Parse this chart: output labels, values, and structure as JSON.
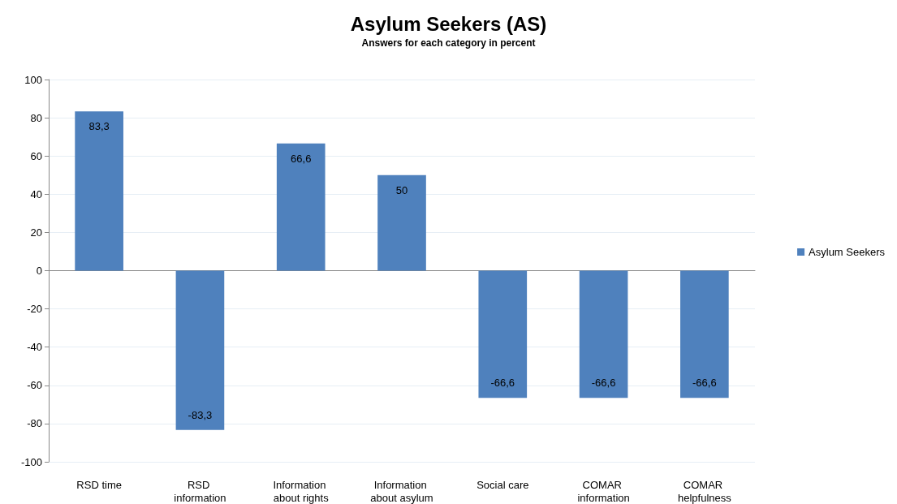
{
  "chart_data": {
    "type": "bar",
    "title": "Asylum Seekers (AS)",
    "subtitle": "Answers for each category in percent",
    "categories": [
      "RSD time",
      "RSD information",
      "Information about rights",
      "Information about asylum",
      "Social care",
      "COMAR information",
      "COMAR helpfulness"
    ],
    "series": [
      {
        "name": "Asylum Seekers",
        "color": "#4f81bd",
        "values": [
          83.3,
          -83.3,
          66.6,
          50,
          -66.6,
          -66.6,
          -66.6
        ],
        "value_labels": [
          "83,3",
          "-83,3",
          "66,6",
          "50",
          "-66,6",
          "-66,6",
          "-66,6"
        ]
      }
    ],
    "ylim": [
      -100,
      100
    ],
    "yticks": [
      -100,
      -80,
      -60,
      -40,
      -20,
      0,
      20,
      40,
      60,
      80,
      100
    ],
    "grid": "y",
    "legend": "right"
  }
}
